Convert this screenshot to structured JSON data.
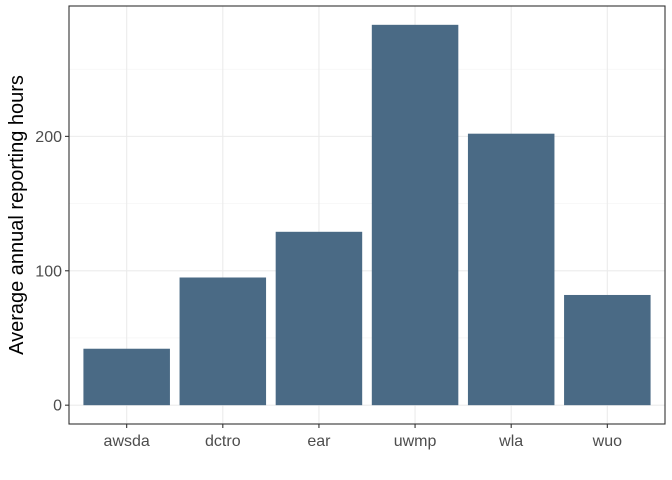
{
  "chart_data": {
    "type": "bar",
    "categories": [
      "awsda",
      "dctro",
      "ear",
      "uwmp",
      "wla",
      "wuo"
    ],
    "values": [
      42,
      95,
      129,
      283,
      202,
      82
    ],
    "title": "",
    "xlabel": "",
    "ylabel": "Average annual reporting hours",
    "ylim": [
      -14,
      297
    ],
    "yticks": [
      0,
      100,
      200
    ],
    "grid": true,
    "bar_color": "#4a6a85"
  }
}
